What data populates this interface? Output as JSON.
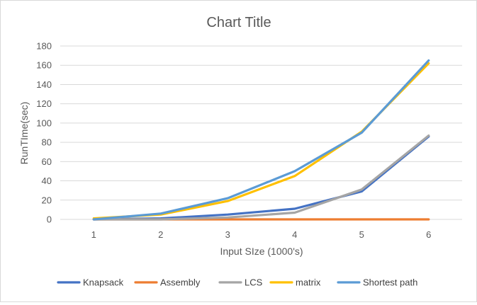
{
  "chart_data": {
    "type": "line",
    "title": "Chart Title",
    "xlabel": "Input SIze (1000's)",
    "ylabel": "RunTIme(sec)",
    "categories": [
      "1",
      "2",
      "3",
      "4",
      "5",
      "6"
    ],
    "ylim": [
      0,
      180
    ],
    "yticks": [
      "0",
      "20",
      "40",
      "60",
      "80",
      "100",
      "120",
      "140",
      "160",
      "180"
    ],
    "grid": true,
    "legend_position": "bottom",
    "series": [
      {
        "name": "Knapsack",
        "color": "#4472c4",
        "values": [
          0,
          1,
          5,
          11,
          29,
          86
        ]
      },
      {
        "name": "Assembly",
        "color": "#ed7d31",
        "values": [
          0,
          0,
          0,
          0,
          0,
          0
        ]
      },
      {
        "name": "LCS",
        "color": "#a5a5a5",
        "values": [
          0,
          0,
          2,
          7,
          31,
          87
        ]
      },
      {
        "name": "matrix",
        "color": "#ffc000",
        "values": [
          1,
          5,
          19,
          45,
          91,
          162
        ]
      },
      {
        "name": "Shortest path",
        "color": "#5b9bd5",
        "values": [
          0,
          6,
          22,
          50,
          90,
          165
        ]
      }
    ]
  }
}
